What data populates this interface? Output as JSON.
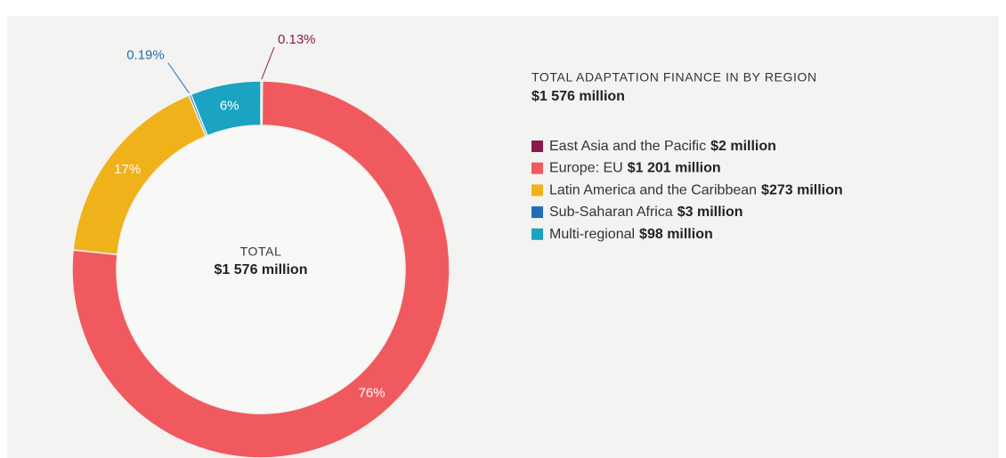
{
  "chart_data": {
    "type": "donut",
    "categories": [
      "East Asia and the Pacific",
      "Europe: EU",
      "Latin America and the Caribbean",
      "Sub-Saharan Africa",
      "Multi-regional"
    ],
    "values": [
      0.13,
      76,
      17,
      0.19,
      6
    ],
    "value_labels": [
      "0.13%",
      "76%",
      "17%",
      "0.19%",
      "6%"
    ],
    "amounts": [
      "$2 million",
      "$1 201 million",
      "$273 million",
      "$3 million",
      "$98 million"
    ],
    "colors": [
      "#8a1a4b",
      "#f05a5e",
      "#f0b21b",
      "#1f6db5",
      "#1aa3c2"
    ],
    "center_title": "TOTAL",
    "total": "$1 576 million",
    "legend_title": "TOTAL ADAPTATION FINANCE IN BY REGION"
  }
}
